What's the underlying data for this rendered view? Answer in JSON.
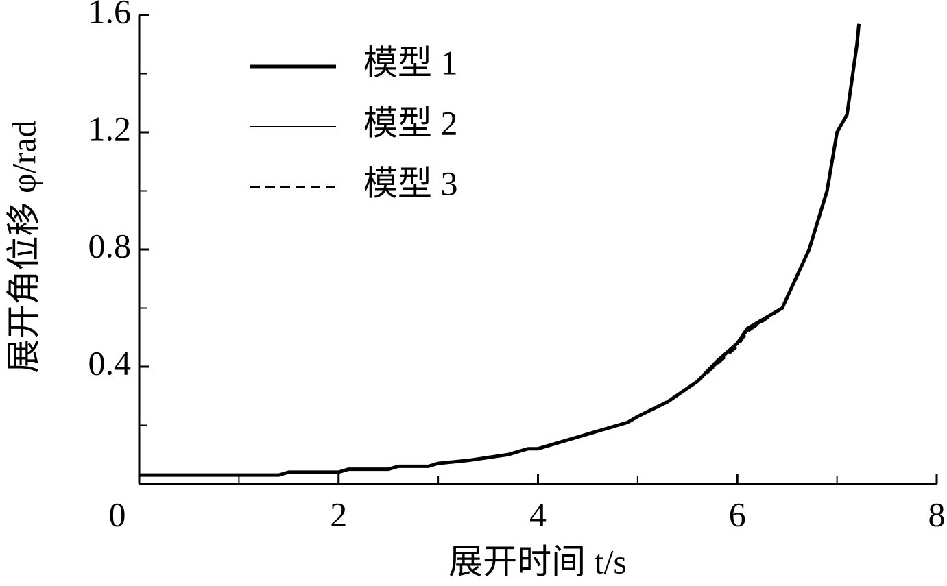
{
  "chart_data": {
    "type": "line",
    "xlabel": "展开时间 t/s",
    "ylabel": "展开角位移 φ/rad",
    "xlim": [
      0,
      8
    ],
    "xticks": [
      0,
      2,
      4,
      6,
      8
    ],
    "xminorticks": [
      1,
      3,
      5,
      7
    ],
    "ylim": [
      0,
      1.6
    ],
    "yticks": [
      0.4,
      0.8,
      1.2,
      1.6
    ],
    "yminorticks": [
      0.2,
      0.6,
      1.0,
      1.4
    ],
    "grid": false,
    "legend": "upper-left",
    "x": [
      0,
      1.4,
      1.5,
      2,
      2.1,
      2.5,
      2.6,
      2.9,
      3,
      3.3,
      3.5,
      3.7,
      3.9,
      4,
      4.5,
      4.9,
      5,
      5.3,
      5.6,
      5.8,
      6,
      6.1,
      6.45,
      6.72,
      6.9,
      7,
      7.1,
      7.2,
      7.22
    ],
    "series": [
      {
        "name": "模型 1",
        "color": "#000000",
        "style": "thick",
        "values": [
          0.03,
          0.03,
          0.04,
          0.04,
          0.05,
          0.05,
          0.06,
          0.06,
          0.07,
          0.08,
          0.09,
          0.1,
          0.12,
          0.12,
          0.17,
          0.21,
          0.23,
          0.28,
          0.35,
          0.42,
          0.48,
          0.53,
          0.6,
          0.8,
          1.0,
          1.2,
          1.26,
          1.5,
          1.57
        ]
      },
      {
        "name": "模型 2",
        "color": "#000000",
        "style": "thin",
        "values": [
          0.03,
          0.03,
          0.04,
          0.04,
          0.05,
          0.05,
          0.06,
          0.06,
          0.07,
          0.08,
          0.09,
          0.1,
          0.12,
          0.12,
          0.17,
          0.21,
          0.23,
          0.28,
          0.35,
          0.41,
          0.48,
          0.52,
          0.6,
          0.8,
          1.0,
          1.2,
          1.26,
          1.51,
          1.57
        ]
      },
      {
        "name": "模型 3",
        "color": "#000000",
        "style": "dashed",
        "values": [
          0.03,
          0.03,
          0.04,
          0.04,
          0.05,
          0.05,
          0.06,
          0.06,
          0.07,
          0.08,
          0.09,
          0.1,
          0.12,
          0.12,
          0.17,
          0.21,
          0.23,
          0.28,
          0.35,
          0.41,
          0.47,
          0.52,
          0.6,
          0.8,
          1.0,
          1.2,
          1.26,
          1.5,
          1.57
        ]
      }
    ]
  }
}
